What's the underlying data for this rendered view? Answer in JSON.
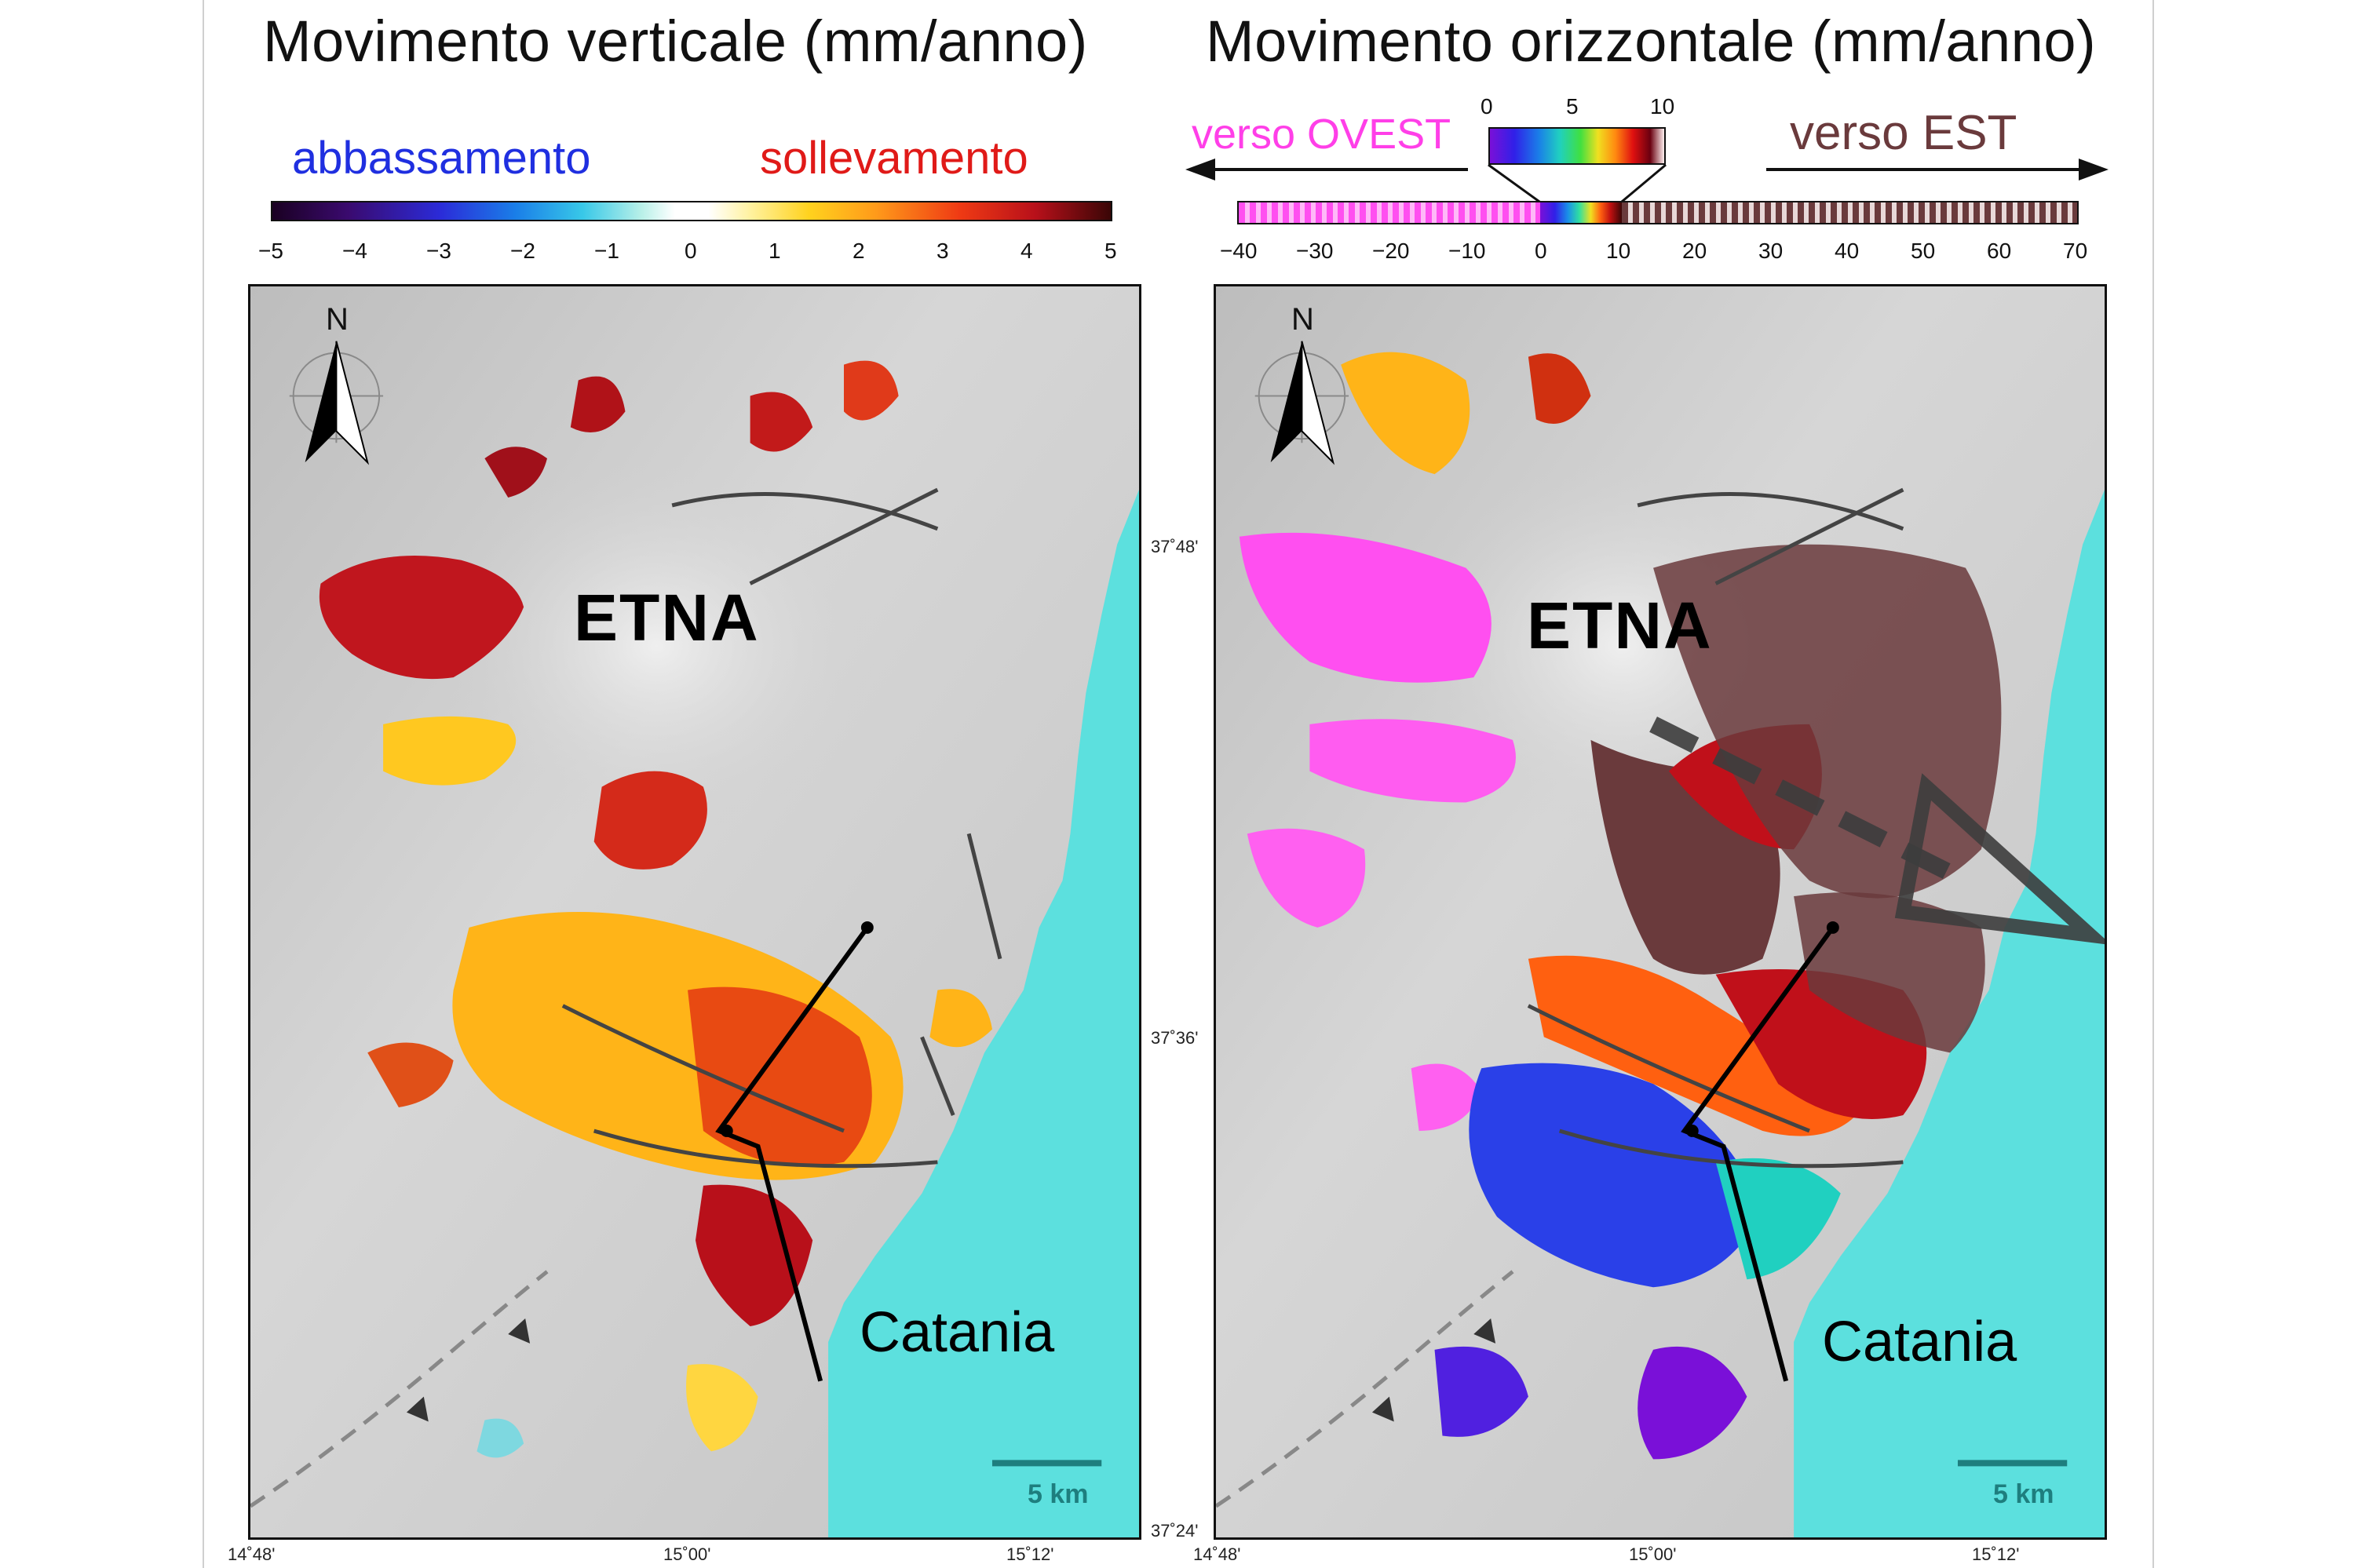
{
  "panels": {
    "vertical": {
      "title": "Movimento verticale (mm/anno)",
      "legend_low": "abbassamento",
      "legend_high": "sollevamento",
      "colorbar_ticks": [
        "−5",
        "−4",
        "−3",
        "−2",
        "−1",
        "0",
        "1",
        "2",
        "3",
        "4",
        "5"
      ],
      "volcano_label": "ETNA",
      "city_label": "Catania",
      "scale_label": "5 km",
      "north_label": "N"
    },
    "horizontal": {
      "title": "Movimento orizzontale (mm/anno)",
      "west_label": "verso OVEST",
      "east_label": "verso EST",
      "inset_ticks": [
        "0",
        "5",
        "10"
      ],
      "colorbar_ticks": [
        "−40",
        "−30",
        "−20",
        "−10",
        "0",
        "10",
        "20",
        "30",
        "40",
        "50",
        "60",
        "70"
      ],
      "volcano_label": "ETNA",
      "city_label": "Catania",
      "scale_label": "5 km",
      "north_label": "N"
    }
  },
  "coords": {
    "lat_labels": [
      "37˚48'",
      "37˚36'",
      "37˚24'"
    ],
    "lon_labels": [
      "14˚48'",
      "15˚00'",
      "15˚12'"
    ]
  },
  "colors": {
    "sea": "#5ce0de",
    "land": "#c9c9c9",
    "west": "#ff4ff0",
    "east": "#6a3a3c",
    "low": "#1f2fe0",
    "high": "#e0101a",
    "arrow": "#3d3d3d"
  }
}
